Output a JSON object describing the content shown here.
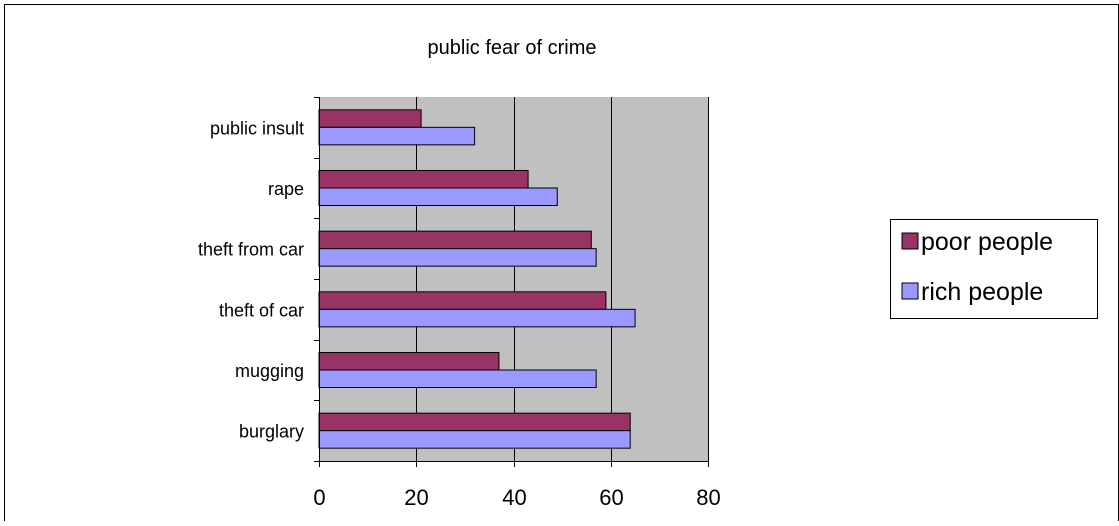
{
  "chart_data": {
    "type": "bar",
    "orientation": "horizontal",
    "title": "public fear of crime",
    "categories": [
      "public insult",
      "rape",
      "theft from car",
      "theft of car",
      "mugging",
      "burglary"
    ],
    "series": [
      {
        "name": "poor people",
        "values": [
          21,
          43,
          56,
          59,
          37,
          64
        ],
        "color": "#993366"
      },
      {
        "name": "rich people",
        "values": [
          32,
          49,
          57,
          65,
          57,
          64
        ],
        "color": "#9999ff"
      }
    ],
    "xlim": [
      0,
      80
    ],
    "xticks": [
      "0",
      "20",
      "40",
      "60",
      "80"
    ],
    "grid": true,
    "legend_position": "right",
    "plot_background": "#c0c0c0"
  }
}
